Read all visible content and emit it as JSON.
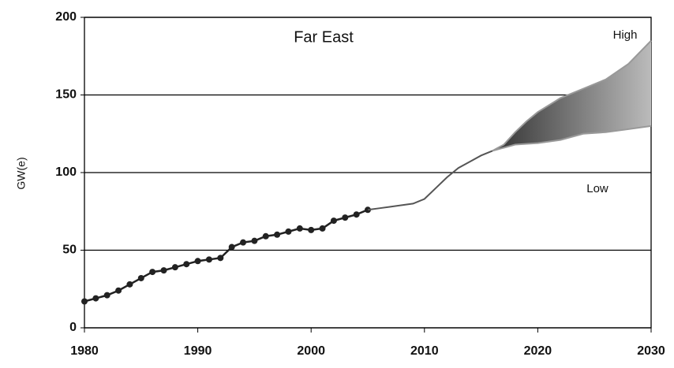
{
  "chart_data": {
    "type": "line",
    "title": "Far East",
    "y_label": "GW(e)",
    "xlim": [
      1980,
      2030
    ],
    "xticks": [
      1980,
      1990,
      2000,
      2010,
      2020,
      2030
    ],
    "ylim": [
      0,
      200
    ],
    "yticks": [
      0,
      50,
      100,
      150,
      200
    ],
    "grid": true,
    "band_colors": [
      "#333333",
      "#bbbbbb"
    ],
    "series": [
      {
        "color": "#222222",
        "markers": true,
        "x": [
          1980,
          1981,
          1982,
          1983,
          1984,
          1985,
          1986,
          1987,
          1988,
          1989,
          1990,
          1991,
          1992,
          1993,
          1994,
          1995,
          1996,
          1997,
          1998,
          1999,
          2000,
          2001,
          2002,
          2003,
          2004,
          2005
        ],
        "values": [
          17,
          19,
          21,
          24,
          28,
          32,
          36,
          37,
          39,
          41,
          43,
          44,
          45,
          52,
          55,
          56,
          59,
          60,
          62,
          64,
          63,
          64,
          69,
          71,
          73,
          76
        ]
      },
      {
        "color": "#555555",
        "markers": false,
        "x": [
          2005,
          2006,
          2007,
          2008,
          2009,
          2010,
          2011,
          2012,
          2013,
          2014,
          2015,
          2016
        ],
        "values": [
          76,
          77,
          78,
          79,
          80,
          83,
          90,
          97,
          103,
          107,
          111,
          114
        ]
      },
      {
        "name": "High",
        "color": "#999999",
        "markers": false,
        "x": [
          2016,
          2017,
          2018,
          2019,
          2020,
          2022,
          2024,
          2026,
          2028,
          2030
        ],
        "values": [
          114,
          118,
          126,
          133,
          139,
          148,
          154,
          160,
          170,
          185
        ]
      },
      {
        "name": "Low",
        "color": "#999999",
        "markers": false,
        "x": [
          2016,
          2017,
          2018,
          2020,
          2022,
          2024,
          2026,
          2028,
          2030
        ],
        "values": [
          114,
          116,
          118,
          119,
          121,
          125,
          126,
          128,
          130
        ]
      }
    ]
  }
}
